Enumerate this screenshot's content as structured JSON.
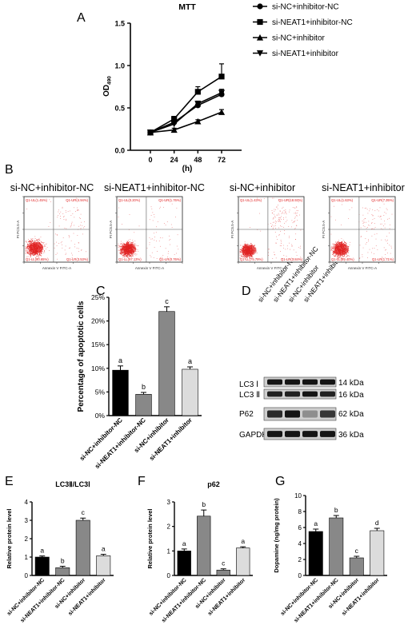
{
  "panels": {
    "A": "A",
    "B": "B",
    "C": "C",
    "D": "D",
    "E": "E",
    "F": "F",
    "G": "G"
  },
  "colors": {
    "black": "#000000",
    "dark": "#1a1a1a",
    "gray_mid": "#888888",
    "gray_light": "#b8b8b8",
    "gray_pale": "#dcdcdc",
    "facs_red": "#e02020"
  },
  "chart_data": [
    {
      "id": "A",
      "type": "line",
      "title": "MTT",
      "xlabel": "(h)",
      "ylabel": "OD",
      "ylabel_sub": "490",
      "x": [
        0,
        24,
        48,
        72
      ],
      "xticks": [
        "0",
        "24",
        "48",
        "72"
      ],
      "ylim": [
        0,
        1.5
      ],
      "yticks": [
        "0.0",
        "0.5",
        "1.0",
        "1.5"
      ],
      "legend": "right",
      "series": [
        {
          "name": "si-NC+inhibitor-NC",
          "marker": "circle",
          "values": [
            0.21,
            0.33,
            0.53,
            0.66
          ],
          "errors": [
            0.02,
            0.02,
            0.03,
            0.03
          ]
        },
        {
          "name": "si-NEAT1+inhibitor-NC",
          "marker": "square",
          "values": [
            0.21,
            0.37,
            0.69,
            0.87
          ],
          "errors": [
            0.02,
            0.03,
            0.06,
            0.15
          ]
        },
        {
          "name": "si-NC+inhibitor",
          "marker": "triangle-up",
          "values": [
            0.21,
            0.24,
            0.34,
            0.45
          ],
          "errors": [
            0.02,
            0.02,
            0.02,
            0.03
          ]
        },
        {
          "name": "si-NEAT1+inhibitor",
          "marker": "triangle-down",
          "values": [
            0.21,
            0.31,
            0.55,
            0.68
          ],
          "errors": [
            0.02,
            0.02,
            0.03,
            0.04
          ]
        }
      ]
    },
    {
      "id": "C",
      "type": "bar",
      "ylabel": "Percentage of apoptotic cells",
      "categories": [
        "si-NC+inhibitor-NC",
        "si-NEAT1+inhibitor-NC",
        "si-NC+inhibitor",
        "si-NEAT1+inhibitor"
      ],
      "values": [
        9.6,
        4.5,
        22.0,
        9.8
      ],
      "errors": [
        0.9,
        0.4,
        1.0,
        0.5
      ],
      "letters": [
        "a",
        "b",
        "c",
        "a"
      ],
      "ylim": [
        0,
        25
      ],
      "yticks": [
        "0%",
        "5%",
        "10%",
        "15%",
        "20%",
        "25%"
      ]
    },
    {
      "id": "E",
      "type": "bar",
      "title": "LC3Ⅱ/LC3Ⅰ",
      "ylabel": "Relative protein level",
      "categories": [
        "si-NC+inhibitor-NC",
        "si-NEAT1+inhibitor-NC",
        "si-NC+inhibitor",
        "si-NEAT1+inhibitor"
      ],
      "values": [
        1.0,
        0.42,
        3.0,
        1.07
      ],
      "errors": [
        0.06,
        0.08,
        0.12,
        0.08
      ],
      "letters": [
        "a",
        "b",
        "c",
        "a"
      ],
      "ylim": [
        0,
        4
      ],
      "yticks": [
        "0",
        "1",
        "2",
        "3",
        "4"
      ]
    },
    {
      "id": "F",
      "type": "bar",
      "title": "p62",
      "ylabel": "Relative protein level",
      "categories": [
        "si-NC+inhibitor-NC",
        "si-NEAT1+inhibitor-NC",
        "si-NC+inhibitor",
        "si-NEAT1+inhibitor"
      ],
      "values": [
        1.0,
        2.42,
        0.22,
        1.12
      ],
      "errors": [
        0.08,
        0.25,
        0.05,
        0.05
      ],
      "letters": [
        "a",
        "b",
        "c",
        "a"
      ],
      "ylim": [
        0,
        3
      ],
      "yticks": [
        "0",
        "1",
        "2",
        "3"
      ]
    },
    {
      "id": "G",
      "type": "bar",
      "ylabel": "Dopamine (ng/mg protein)",
      "categories": [
        "si-NC+inhibitor-NC",
        "si-NEAT1+inhibitor-NC",
        "si-NC+inhibitor",
        "si-NEAT1+inhibitor"
      ],
      "values": [
        5.5,
        7.2,
        2.2,
        5.6
      ],
      "errors": [
        0.3,
        0.3,
        0.2,
        0.3
      ],
      "letters": [
        "a",
        "b",
        "c",
        "d"
      ],
      "ylim": [
        0,
        10
      ],
      "yticks": [
        "0",
        "2",
        "4",
        "6",
        "8",
        "10"
      ]
    }
  ],
  "flow": {
    "x_axis_label": "Annexin V FITC-A",
    "y_axis_label": "PI PC5.5-A",
    "panels": [
      {
        "title": "si-NC+inhibitor-NC",
        "ul": "Q1-UL(1.45%)",
        "ur": "Q1-UR(4.94%)",
        "ll": "Q1-LL(90.65%)",
        "lr": "Q1-LR(3.53%)"
      },
      {
        "title": "si-NEAT1+inhibitor-NC",
        "ul": "Q1-UL(0.20%)",
        "ur": "Q1-UR(1.76%)",
        "ll": "Q1-LL(97.13%)",
        "lr": "Q1-LR(0.76%)"
      },
      {
        "title": "si-NC+inhibitor",
        "ul": "Q1-UL(1.43%)",
        "ur": "Q1-UR(18.93%)",
        "ll": "Q1-LL(75.79%)",
        "lr": "Q1-LR(3.84%)"
      },
      {
        "title": "si-NEAT1+inhibitor",
        "ul": "Q1-UL(1.63%)",
        "ur": "Q1-UR(7.26%)",
        "ll": "Q1-LL(89.40%)",
        "lr": "Q1-LR(1.71%)"
      }
    ]
  },
  "western": {
    "lanes": [
      "si-NC+inhibitor-NC",
      "si-NEAT1+inhibitor-NC",
      "si-NC+inhibitor",
      "si-NEAT1+inhibitor"
    ],
    "rows": [
      {
        "name": "LC3 Ⅰ",
        "kda": "14 kDa",
        "intensity": [
          0.95,
          0.95,
          0.95,
          0.95
        ]
      },
      {
        "name": "LC3 Ⅱ",
        "kda": "16 kDa",
        "intensity": [
          0.9,
          0.9,
          0.95,
          0.9
        ]
      },
      {
        "name": "P62",
        "kda": "62 kDa",
        "intensity": [
          0.85,
          0.95,
          0.4,
          0.8
        ]
      },
      {
        "name": "GAPDH",
        "kda": "36 kDa",
        "intensity": [
          0.95,
          0.95,
          0.95,
          0.95
        ]
      }
    ]
  }
}
